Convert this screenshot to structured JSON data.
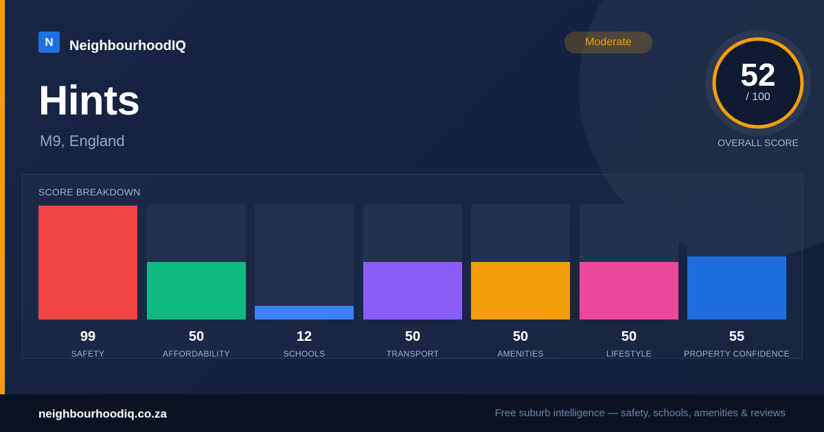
{
  "brand": {
    "logo_letter": "N",
    "name": "NeighbourhoodIQ"
  },
  "place": {
    "title": "Hints",
    "location": "M9, England"
  },
  "rating": {
    "level_label": "Moderate",
    "score": 52,
    "score_text": "52",
    "max_text": "/ 100",
    "caption": "OVERALL SCORE",
    "max": 100
  },
  "breakdown": {
    "heading": "SCORE BREAKDOWN",
    "categories": [
      {
        "label": "SAFETY",
        "value": 99,
        "value_text": "99",
        "color": "#ef4444"
      },
      {
        "label": "AFFORDABILITY",
        "value": 50,
        "value_text": "50",
        "color": "#10b981"
      },
      {
        "label": "SCHOOLS",
        "value": 12,
        "value_text": "12",
        "color": "#3b82f6"
      },
      {
        "label": "TRANSPORT",
        "value": 50,
        "value_text": "50",
        "color": "#8b5cf6"
      },
      {
        "label": "AMENITIES",
        "value": 50,
        "value_text": "50",
        "color": "#f59e0b"
      },
      {
        "label": "LIFESTYLE",
        "value": 50,
        "value_text": "50",
        "color": "#ec4899"
      },
      {
        "label": "PROPERTY CONFIDENCE",
        "value": 55,
        "value_text": "55",
        "color": "#1d6fe0"
      }
    ]
  },
  "footer": {
    "domain": "neighbourhoodiq.co.za",
    "tagline": "Free suburb intelligence — safety, schools, amenities & reviews"
  },
  "colors": {
    "accent": "#f59e0b",
    "brand_blue": "#1d6fe0",
    "background": "#131f38"
  }
}
